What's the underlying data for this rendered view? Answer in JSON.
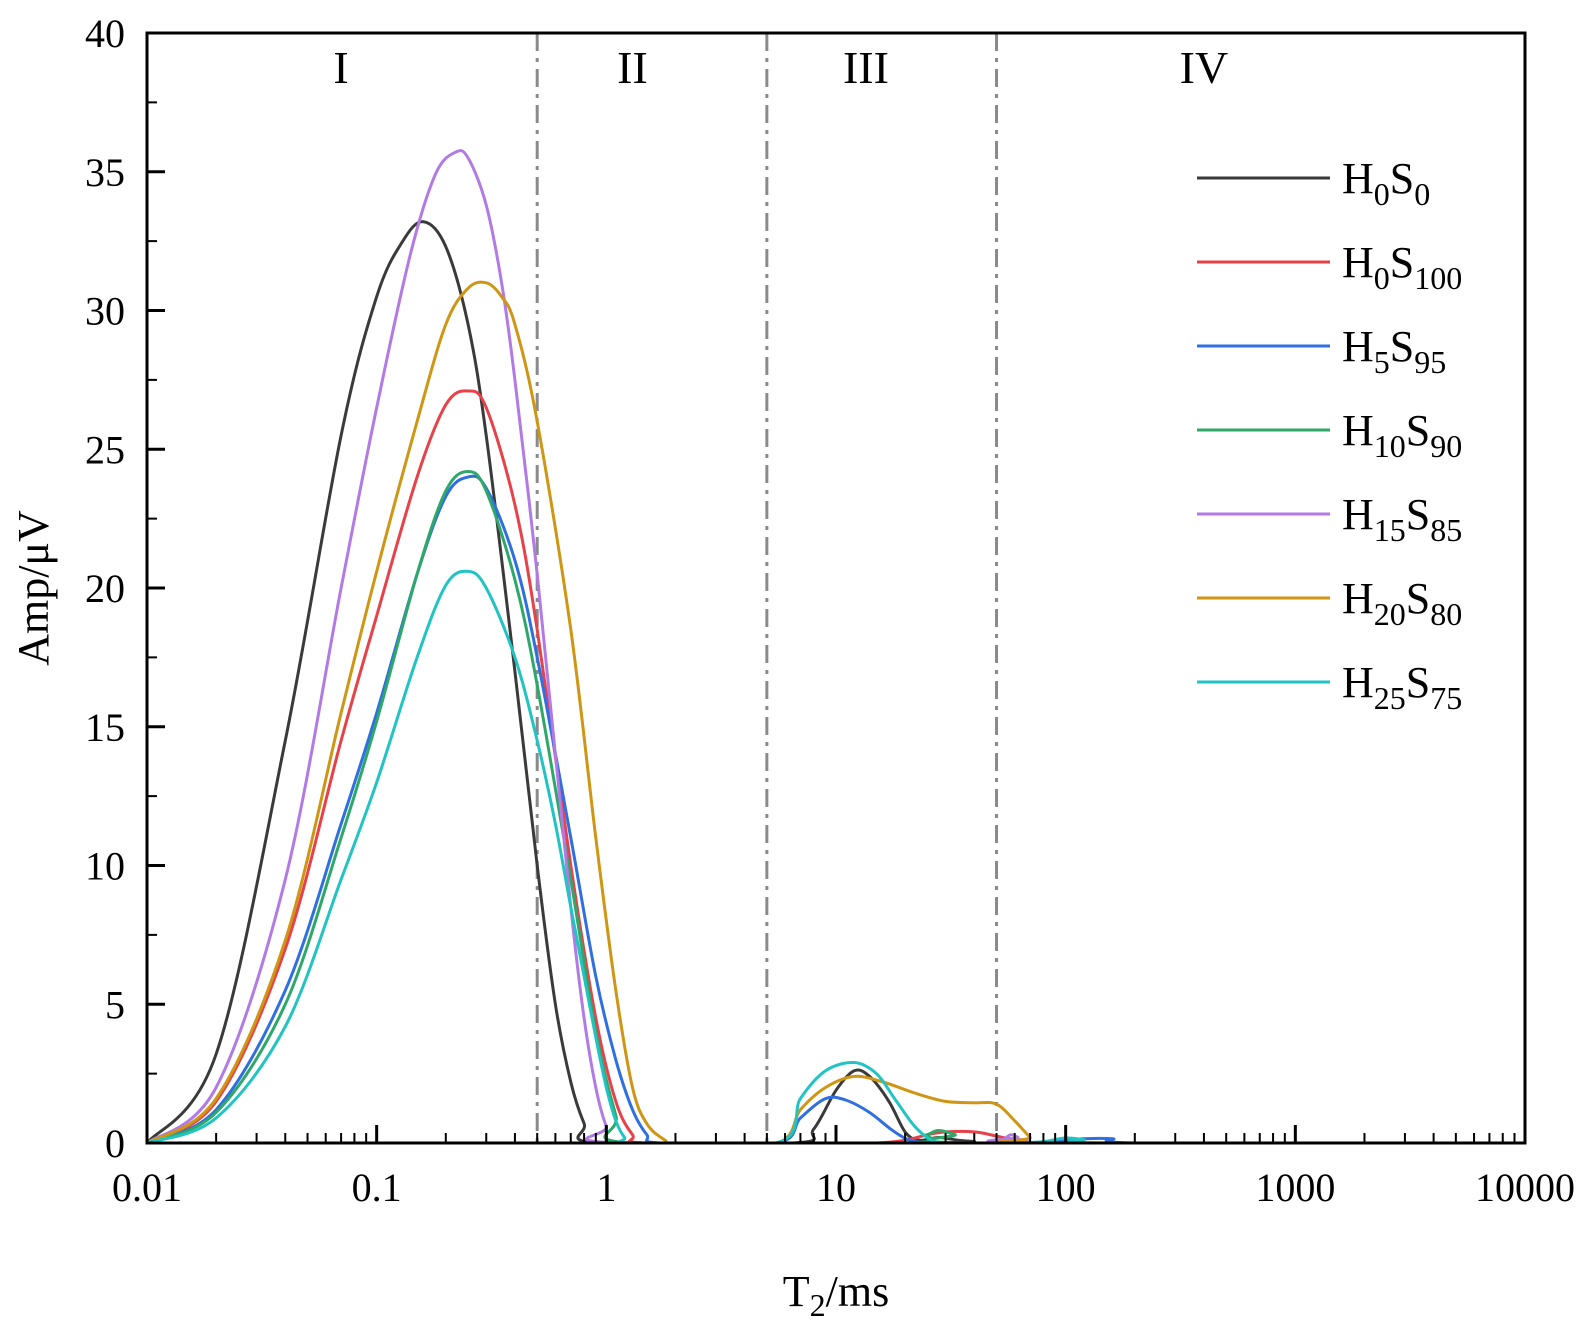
{
  "chart_data": {
    "type": "line",
    "xlabel": {
      "main": "T",
      "sub": "2",
      "unit": "/ms"
    },
    "ylabel": "Amp/μV",
    "xscale": "log",
    "xlim": [
      0.01,
      10000
    ],
    "ylim": [
      0,
      40
    ],
    "x_ticks": [
      "0.01",
      "0.1",
      "1",
      "10",
      "100",
      "1000",
      "10000"
    ],
    "x_tick_values": [
      0.01,
      0.1,
      1,
      10,
      100,
      1000,
      10000
    ],
    "y_ticks": [
      "0",
      "5",
      "10",
      "15",
      "20",
      "25",
      "30",
      "35",
      "40"
    ],
    "y_tick_values": [
      0,
      5,
      10,
      15,
      20,
      25,
      30,
      35,
      40
    ],
    "grid": false,
    "legend_position": "top-right",
    "regions": [
      {
        "label": "I",
        "x_center": 0.07
      },
      {
        "label": "II",
        "x_center": 1.3
      },
      {
        "label": "III",
        "x_center": 13.5
      },
      {
        "label": "IV",
        "x_center": 400
      }
    ],
    "region_boundaries": [
      0.5,
      5,
      50
    ],
    "series": [
      {
        "name": "H0S0",
        "legend": {
          "h": "0",
          "s": "0"
        },
        "color": "#3a3a3a",
        "x": [
          0.01,
          0.02,
          0.04,
          0.07,
          0.1,
          0.13,
          0.16,
          0.2,
          0.25,
          0.3,
          0.4,
          0.5,
          0.6,
          0.7,
          0.8,
          0.9,
          6.5,
          8,
          10,
          12,
          14,
          17,
          20,
          23,
          28,
          34,
          40,
          50,
          10000
        ],
        "y": [
          0,
          3.2,
          14.5,
          25.5,
          30.5,
          32.5,
          33.2,
          32.3,
          29.5,
          25.5,
          17,
          10,
          5,
          2.2,
          0.7,
          0,
          0,
          0.5,
          1.9,
          2.6,
          2.4,
          1.5,
          0.4,
          0.1,
          0.2,
          0.1,
          0.05,
          0,
          0
        ]
      },
      {
        "name": "H0S100",
        "legend": {
          "h": "0",
          "s": "100"
        },
        "color": "#e8414a",
        "x": [
          0.01,
          0.02,
          0.04,
          0.07,
          0.1,
          0.15,
          0.2,
          0.25,
          0.3,
          0.4,
          0.5,
          0.7,
          0.9,
          1.1,
          1.3,
          1.5,
          9,
          15,
          20,
          25,
          30,
          40,
          50,
          60,
          70,
          10000
        ],
        "y": [
          0,
          1.5,
          7,
          14.5,
          19,
          24,
          26.6,
          27.1,
          26.5,
          23,
          18.5,
          10,
          4.5,
          1.5,
          0.3,
          0,
          0,
          0,
          0.1,
          0.3,
          0.4,
          0.4,
          0.25,
          0.1,
          0,
          0
        ]
      },
      {
        "name": "H5S95",
        "legend": {
          "h": "5",
          "s": "95"
        },
        "color": "#2f6fe0",
        "x": [
          0.01,
          0.02,
          0.04,
          0.07,
          0.1,
          0.15,
          0.2,
          0.25,
          0.3,
          0.4,
          0.5,
          0.7,
          0.9,
          1.1,
          1.3,
          1.5,
          1.7,
          5.5,
          7,
          9,
          11,
          14,
          18,
          22,
          30,
          60,
          90,
          120,
          160,
          220,
          10000
        ],
        "y": [
          0,
          1.2,
          5.5,
          11.5,
          15.5,
          20.5,
          23.3,
          24,
          23.6,
          21,
          17.5,
          11,
          6,
          3,
          1.2,
          0.3,
          0,
          0,
          0.9,
          1.6,
          1.55,
          1.1,
          0.4,
          0.05,
          0,
          0,
          0.05,
          0.15,
          0.15,
          0,
          0
        ]
      },
      {
        "name": "H10S90",
        "legend": {
          "h": "10",
          "s": "90"
        },
        "color": "#2ea86a",
        "x": [
          0.01,
          0.02,
          0.04,
          0.07,
          0.1,
          0.15,
          0.2,
          0.25,
          0.3,
          0.4,
          0.5,
          0.7,
          0.9,
          1.1,
          1.25,
          20,
          25,
          28,
          33,
          40,
          10000
        ],
        "y": [
          0,
          1.1,
          5,
          11,
          15.2,
          20.5,
          23.5,
          24.2,
          23.5,
          20.3,
          16.5,
          9.5,
          4,
          1,
          0,
          0,
          0.3,
          0.45,
          0.3,
          0,
          0
        ]
      },
      {
        "name": "H15S85",
        "legend": {
          "h": "15",
          "s": "85"
        },
        "color": "#b27ae4",
        "x": [
          0.01,
          0.02,
          0.04,
          0.07,
          0.1,
          0.14,
          0.18,
          0.22,
          0.25,
          0.3,
          0.35,
          0.4,
          0.5,
          0.6,
          0.7,
          0.8,
          0.9,
          1.0,
          1.12,
          50,
          55,
          58,
          62,
          68,
          10000
        ],
        "y": [
          0,
          2,
          9.5,
          20,
          26.5,
          32,
          34.9,
          35.7,
          35.5,
          33.8,
          31,
          27.5,
          20.5,
          14,
          8.5,
          4.5,
          2,
          0.6,
          0,
          0,
          0.2,
          0.3,
          0.2,
          0,
          0
        ]
      },
      {
        "name": "H20S80",
        "legend": {
          "h": "20",
          "s": "80"
        },
        "color": "#cf9614",
        "x": [
          0.01,
          0.02,
          0.04,
          0.07,
          0.1,
          0.15,
          0.2,
          0.25,
          0.3,
          0.35,
          0.4,
          0.5,
          0.7,
          0.9,
          1.1,
          1.3,
          1.5,
          1.8,
          2.0,
          5.5,
          7,
          9,
          12,
          16,
          22,
          30,
          40,
          50,
          60,
          70,
          75,
          10000
        ],
        "y": [
          0,
          1.6,
          7.3,
          15.5,
          20.6,
          26,
          29.5,
          30.8,
          31,
          30.5,
          29.5,
          26,
          18.5,
          11,
          5.5,
          2,
          0.7,
          0.1,
          0,
          0,
          1.2,
          2.0,
          2.4,
          2.2,
          1.8,
          1.5,
          1.45,
          1.4,
          0.8,
          0.2,
          0,
          0
        ]
      },
      {
        "name": "H25S75",
        "legend": {
          "h": "25",
          "s": "75"
        },
        "color": "#22c3c3",
        "x": [
          0.01,
          0.02,
          0.04,
          0.07,
          0.1,
          0.15,
          0.2,
          0.25,
          0.3,
          0.4,
          0.5,
          0.6,
          0.7,
          0.8,
          0.9,
          1.0,
          1.1,
          1.2,
          1.3,
          5.5,
          7,
          9,
          12,
          15,
          18,
          22,
          26,
          30,
          40,
          60,
          80,
          100,
          120,
          150,
          10000
        ],
        "y": [
          0,
          0.9,
          4.2,
          9.5,
          13,
          17.5,
          20.1,
          20.6,
          20,
          17.5,
          14.5,
          11.5,
          8.5,
          6,
          3.8,
          2,
          0.8,
          0.2,
          0,
          0,
          1.6,
          2.6,
          2.9,
          2.5,
          1.6,
          0.6,
          0.1,
          0,
          0,
          0,
          0.05,
          0.18,
          0.12,
          0,
          0
        ]
      }
    ]
  }
}
